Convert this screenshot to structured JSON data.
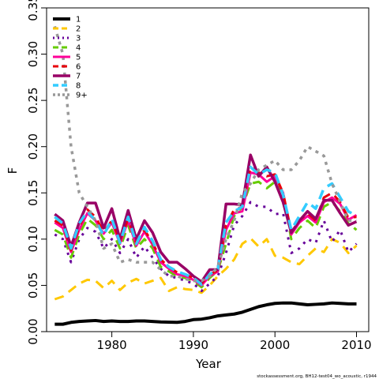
{
  "chart_data": {
    "type": "line",
    "xlabel": "Year",
    "ylabel": "F",
    "xlim": [
      1972,
      2011.5
    ],
    "ylim": [
      0,
      0.35
    ],
    "xticks": [
      1980,
      1990,
      2000,
      2010
    ],
    "yticks": [
      0.0,
      0.05,
      0.1,
      0.15,
      0.2,
      0.25,
      0.3,
      0.35
    ],
    "ytick_labels": [
      "0.00",
      "0.05",
      "0.10",
      "0.15",
      "0.20",
      "0.25",
      "0.30",
      "0.35"
    ],
    "x": [
      1973,
      1974,
      1975,
      1976,
      1977,
      1978,
      1979,
      1980,
      1981,
      1982,
      1983,
      1984,
      1985,
      1986,
      1987,
      1988,
      1989,
      1990,
      1991,
      1992,
      1993,
      1994,
      1995,
      1996,
      1997,
      1998,
      1999,
      2000,
      2001,
      2002,
      2003,
      2004,
      2005,
      2006,
      2007,
      2008,
      2009,
      2010
    ],
    "legend_position": "top-left",
    "series": [
      {
        "name": "1",
        "color": "#000000",
        "dash": "",
        "width": 4,
        "values": [
          0.008,
          0.008,
          0.01,
          0.011,
          0.0115,
          0.012,
          0.011,
          0.0115,
          0.011,
          0.011,
          0.0115,
          0.0115,
          0.011,
          0.0105,
          0.0102,
          0.01,
          0.011,
          0.013,
          0.0135,
          0.015,
          0.017,
          0.018,
          0.019,
          0.021,
          0.024,
          0.027,
          0.029,
          0.0305,
          0.031,
          0.031,
          0.03,
          0.029,
          0.0295,
          0.03,
          0.031,
          0.0305,
          0.03,
          0.03
        ]
      },
      {
        "name": "2",
        "color": "#ffc800",
        "dash": "12,8",
        "width": 3,
        "values": [
          0.035,
          0.038,
          0.045,
          0.052,
          0.056,
          0.055,
          0.047,
          0.055,
          0.045,
          0.053,
          0.057,
          0.052,
          0.055,
          0.058,
          0.044,
          0.048,
          0.046,
          0.045,
          0.042,
          0.05,
          0.06,
          0.068,
          0.078,
          0.095,
          0.101,
          0.092,
          0.1,
          0.082,
          0.08,
          0.075,
          0.073,
          0.082,
          0.09,
          0.086,
          0.1,
          0.096,
          0.085,
          0.093
        ]
      },
      {
        "name": "3",
        "color": "#660099",
        "dash": "3,7",
        "width": 3,
        "values": [
          0.105,
          0.1,
          0.075,
          0.1,
          0.112,
          0.108,
          0.09,
          0.1,
          0.085,
          0.1,
          0.08,
          0.092,
          0.08,
          0.068,
          0.06,
          0.058,
          0.055,
          0.052,
          0.044,
          0.052,
          0.06,
          0.085,
          0.115,
          0.125,
          0.14,
          0.135,
          0.135,
          0.127,
          0.128,
          0.085,
          0.09,
          0.1,
          0.096,
          0.12,
          0.097,
          0.11,
          0.086,
          0.095
        ]
      },
      {
        "name": "4",
        "color": "#66cc00",
        "dash": "12,8",
        "width": 3,
        "values": [
          0.11,
          0.105,
          0.08,
          0.105,
          0.122,
          0.115,
          0.1,
          0.11,
          0.09,
          0.115,
          0.09,
          0.1,
          0.09,
          0.07,
          0.065,
          0.06,
          0.058,
          0.055,
          0.048,
          0.058,
          0.066,
          0.095,
          0.125,
          0.135,
          0.16,
          0.162,
          0.155,
          0.162,
          0.15,
          0.1,
          0.112,
          0.12,
          0.112,
          0.135,
          0.14,
          0.13,
          0.117,
          0.11
        ]
      },
      {
        "name": "5",
        "color": "#ff0099",
        "dash": "",
        "width": 3,
        "values": [
          0.118,
          0.112,
          0.086,
          0.11,
          0.128,
          0.12,
          0.106,
          0.118,
          0.095,
          0.12,
          0.093,
          0.108,
          0.094,
          0.075,
          0.068,
          0.062,
          0.06,
          0.056,
          0.05,
          0.06,
          0.065,
          0.11,
          0.128,
          0.13,
          0.172,
          0.17,
          0.162,
          0.168,
          0.15,
          0.105,
          0.118,
          0.125,
          0.118,
          0.14,
          0.145,
          0.138,
          0.121,
          0.126
        ]
      },
      {
        "name": "6",
        "color": "#e8000b",
        "dash": "12,8",
        "width": 3,
        "values": [
          0.12,
          0.115,
          0.088,
          0.113,
          0.132,
          0.124,
          0.108,
          0.12,
          0.098,
          0.122,
          0.096,
          0.11,
          0.096,
          0.078,
          0.07,
          0.064,
          0.062,
          0.058,
          0.052,
          0.062,
          0.066,
          0.115,
          0.132,
          0.135,
          0.178,
          0.172,
          0.168,
          0.17,
          0.15,
          0.108,
          0.12,
          0.128,
          0.12,
          0.145,
          0.15,
          0.14,
          0.123,
          0.124
        ]
      },
      {
        "name": "7",
        "color": "#990066",
        "dash": "",
        "width": 3.5,
        "values": [
          0.127,
          0.12,
          0.092,
          0.118,
          0.139,
          0.139,
          0.112,
          0.133,
          0.1,
          0.131,
          0.1,
          0.12,
          0.107,
          0.086,
          0.075,
          0.075,
          0.068,
          0.06,
          0.054,
          0.067,
          0.067,
          0.138,
          0.138,
          0.137,
          0.191,
          0.168,
          0.178,
          0.162,
          0.14,
          0.107,
          0.12,
          0.13,
          0.122,
          0.142,
          0.142,
          0.128,
          0.115,
          0.119
        ]
      },
      {
        "name": "8",
        "color": "#33ccff",
        "dash": "12,8",
        "width": 3.5,
        "values": [
          0.124,
          0.117,
          0.09,
          0.117,
          0.13,
          0.12,
          0.104,
          0.122,
          0.096,
          0.124,
          0.095,
          0.113,
          0.098,
          0.078,
          0.07,
          0.065,
          0.062,
          0.058,
          0.051,
          0.062,
          0.068,
          0.118,
          0.13,
          0.135,
          0.178,
          0.17,
          0.175,
          0.172,
          0.148,
          0.11,
          0.125,
          0.14,
          0.133,
          0.155,
          0.16,
          0.145,
          0.13,
          0.125
        ]
      },
      {
        "name": "9+",
        "color": "#999999",
        "dash": "4,6",
        "width": 3.5,
        "values": [
          0.33,
          0.3,
          0.2,
          0.15,
          0.135,
          0.12,
          0.09,
          0.095,
          0.075,
          0.078,
          0.075,
          0.075,
          0.075,
          0.067,
          0.06,
          0.06,
          0.057,
          0.055,
          0.055,
          0.06,
          0.07,
          0.1,
          0.12,
          0.15,
          0.16,
          0.175,
          0.18,
          0.185,
          0.175,
          0.175,
          0.185,
          0.2,
          0.195,
          0.19,
          0.16,
          0.14,
          0.12,
          0.12
        ]
      }
    ]
  },
  "credit": "stockassessment.org, BH12-test04_wo_acoustic, r1944"
}
